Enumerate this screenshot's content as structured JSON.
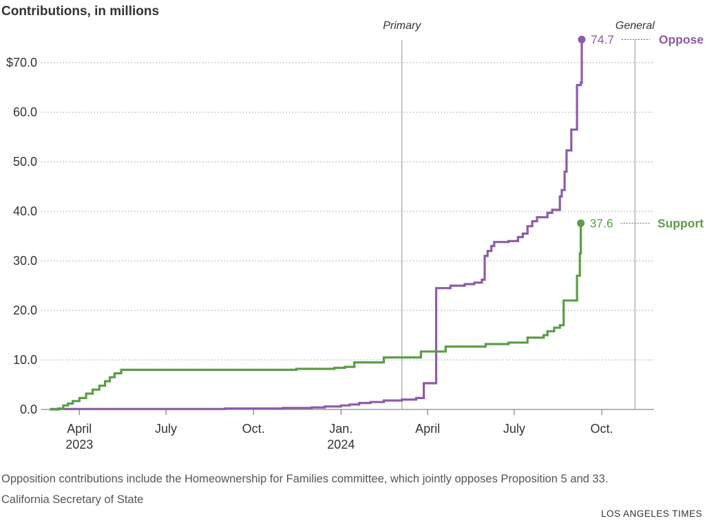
{
  "chart_data": {
    "type": "line",
    "title": "Contributions, in millions",
    "yticks": [
      {
        "value": 0,
        "label": "0.0"
      },
      {
        "value": 10,
        "label": "10.0"
      },
      {
        "value": 20,
        "label": "20.0"
      },
      {
        "value": 30,
        "label": "30.0"
      },
      {
        "value": 40,
        "label": "40.0"
      },
      {
        "value": 50,
        "label": "50.0"
      },
      {
        "value": 60,
        "label": "60.0"
      },
      {
        "value": 70,
        "label": "$70.0"
      }
    ],
    "ylim": [
      0,
      76
    ],
    "xlim": [
      "2023-02-20",
      "2024-11-25"
    ],
    "xticks": [
      {
        "date": "2023-04-01",
        "label": "April",
        "year": "2023"
      },
      {
        "date": "2023-07-01",
        "label": "July",
        "year": ""
      },
      {
        "date": "2023-10-01",
        "label": "Oct.",
        "year": ""
      },
      {
        "date": "2024-01-01",
        "label": "Jan.",
        "year": "2024"
      },
      {
        "date": "2024-04-01",
        "label": "April",
        "year": ""
      },
      {
        "date": "2024-07-01",
        "label": "July",
        "year": ""
      },
      {
        "date": "2024-10-01",
        "label": "Oct.",
        "year": ""
      }
    ],
    "events": [
      {
        "label": "Primary",
        "date": "2024-03-05"
      },
      {
        "label": "General",
        "date": "2024-11-05"
      }
    ],
    "grid": "horizontal dotted",
    "series": [
      {
        "name": "Oppose",
        "color": "#8e5ba8",
        "end_label": "74.7",
        "points": [
          [
            "2023-03-01",
            0.1
          ],
          [
            "2023-09-01",
            0.2
          ],
          [
            "2023-11-01",
            0.3
          ],
          [
            "2023-12-01",
            0.4
          ],
          [
            "2023-12-15",
            0.6
          ],
          [
            "2024-01-01",
            0.8
          ],
          [
            "2024-01-10",
            1.0
          ],
          [
            "2024-01-20",
            1.3
          ],
          [
            "2024-02-01",
            1.5
          ],
          [
            "2024-02-15",
            1.8
          ],
          [
            "2024-03-05",
            2.0
          ],
          [
            "2024-03-20",
            2.3
          ],
          [
            "2024-03-28",
            5.3
          ],
          [
            "2024-04-10",
            24.5
          ],
          [
            "2024-04-25",
            25.0
          ],
          [
            "2024-05-10",
            25.3
          ],
          [
            "2024-05-20",
            25.6
          ],
          [
            "2024-05-28",
            26.2
          ],
          [
            "2024-05-31",
            31.0
          ],
          [
            "2024-06-03",
            32.0
          ],
          [
            "2024-06-07",
            33.0
          ],
          [
            "2024-06-10",
            33.8
          ],
          [
            "2024-06-25",
            34.0
          ],
          [
            "2024-07-05",
            34.8
          ],
          [
            "2024-07-10",
            35.5
          ],
          [
            "2024-07-15",
            37.0
          ],
          [
            "2024-07-20",
            38.0
          ],
          [
            "2024-07-25",
            38.8
          ],
          [
            "2024-08-05",
            39.7
          ],
          [
            "2024-08-10",
            40.3
          ],
          [
            "2024-08-18",
            43.0
          ],
          [
            "2024-08-20",
            44.3
          ],
          [
            "2024-08-23",
            48.0
          ],
          [
            "2024-08-25",
            52.3
          ],
          [
            "2024-08-30",
            56.5
          ],
          [
            "2024-09-05",
            65.5
          ],
          [
            "2024-09-09",
            66.0
          ],
          [
            "2024-09-10",
            74.7
          ]
        ]
      },
      {
        "name": "Support",
        "color": "#5a9e47",
        "end_label": "37.6",
        "points": [
          [
            "2023-03-01",
            0.0
          ],
          [
            "2023-03-10",
            0.2
          ],
          [
            "2023-03-15",
            0.8
          ],
          [
            "2023-03-20",
            1.2
          ],
          [
            "2023-03-25",
            1.7
          ],
          [
            "2023-04-01",
            2.3
          ],
          [
            "2023-04-08",
            3.2
          ],
          [
            "2023-04-15",
            4.0
          ],
          [
            "2023-04-22",
            4.8
          ],
          [
            "2023-04-28",
            5.7
          ],
          [
            "2023-05-03",
            6.5
          ],
          [
            "2023-05-08",
            7.3
          ],
          [
            "2023-05-15",
            8.0
          ],
          [
            "2023-11-15",
            8.2
          ],
          [
            "2023-12-25",
            8.4
          ],
          [
            "2024-01-05",
            8.6
          ],
          [
            "2024-01-15",
            9.5
          ],
          [
            "2024-02-15",
            10.5
          ],
          [
            "2024-03-25",
            11.7
          ],
          [
            "2024-04-20",
            12.7
          ],
          [
            "2024-06-01",
            13.2
          ],
          [
            "2024-06-25",
            13.5
          ],
          [
            "2024-07-15",
            14.5
          ],
          [
            "2024-08-01",
            15.0
          ],
          [
            "2024-08-05",
            15.8
          ],
          [
            "2024-08-12",
            16.5
          ],
          [
            "2024-08-18",
            17.0
          ],
          [
            "2024-08-22",
            22.0
          ],
          [
            "2024-09-05",
            27.0
          ],
          [
            "2024-09-08",
            31.5
          ],
          [
            "2024-09-09",
            37.6
          ]
        ]
      }
    ]
  },
  "footnote": "Opposition contributions include the Homeownership for Families committee, which jointly opposes Proposition 5 and 33.",
  "source": "California Secretary of State",
  "credit": "LOS ANGELES TIMES"
}
